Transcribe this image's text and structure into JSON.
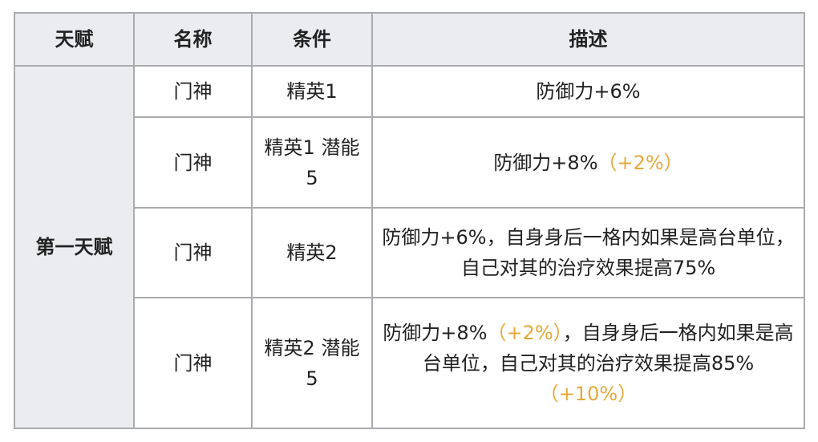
{
  "headers": [
    "天赋",
    "名称",
    "条件",
    "描述"
  ],
  "talent_name": "第一天赋",
  "highlight_color": "#e6a93a",
  "rows": [
    {
      "name": "门神",
      "condition": "精英1",
      "desc": [
        {
          "t": "防御力+6%"
        }
      ]
    },
    {
      "name": "门神",
      "condition": "精英1 潜能5",
      "desc": [
        {
          "t": "防御力+8%"
        },
        {
          "t": "（+2%）",
          "hl": true
        }
      ]
    },
    {
      "name": "门神",
      "condition": "精英2",
      "desc": [
        {
          "t": "防御力+6%，自身身后一格内如果是高台单位，自己对其的治疗效果提高75%"
        }
      ]
    },
    {
      "name": "门神",
      "condition": "精英2 潜能5",
      "desc": [
        {
          "t": "防御力+8%"
        },
        {
          "t": "（+2%）",
          "hl": true
        },
        {
          "t": "，自身身后一格内如果是高台单位，自己对其的治疗效果提高85%"
        },
        {
          "t": "（+10%）",
          "hl": true
        }
      ]
    }
  ]
}
